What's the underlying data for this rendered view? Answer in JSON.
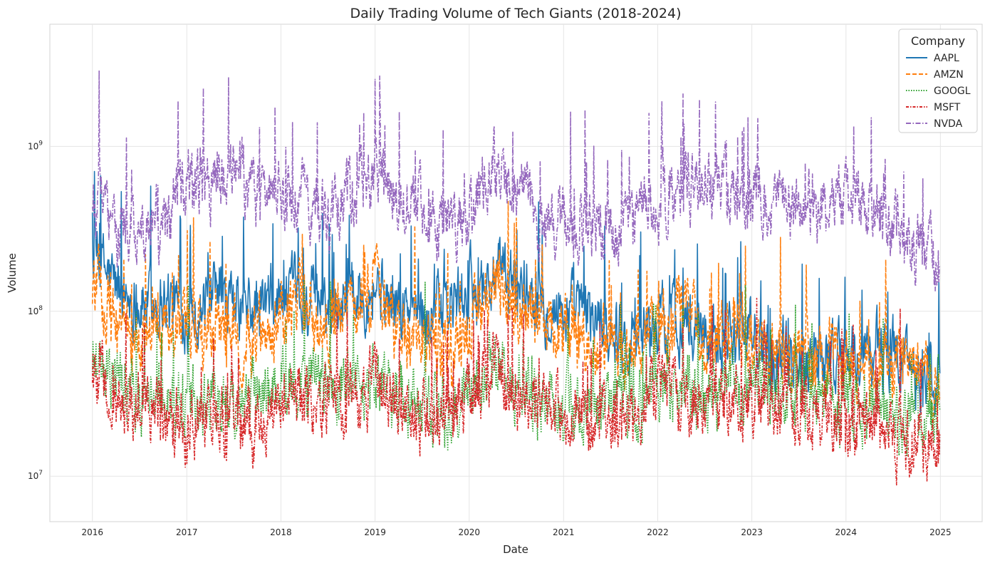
{
  "chart_data": {
    "type": "line",
    "title": "Daily Trading Volume of Tech Giants (2018-2024)",
    "xlabel": "Date",
    "ylabel": "Volume",
    "y_scale": "log",
    "ylim": [
      5300000,
      5500000000
    ],
    "xlim": [
      "2015-07-20",
      "2025-06-12"
    ],
    "x_ticks": [
      "2016",
      "2017",
      "2018",
      "2019",
      "2020",
      "2021",
      "2022",
      "2023",
      "2024",
      "2025"
    ],
    "y_ticks": [
      {
        "value": 10000000,
        "base": "10",
        "exp": "7"
      },
      {
        "value": 100000000,
        "base": "10",
        "exp": "8"
      },
      {
        "value": 1000000000,
        "base": "10",
        "exp": "9"
      }
    ],
    "grid": true,
    "legend": {
      "title": "Company",
      "position": "top-right"
    },
    "series": [
      {
        "name": "AAPL",
        "color": "#1f77b4",
        "dash": "solid",
        "points": [
          [
            "2016-01-01",
            230000000.0
          ],
          [
            "2016-04-01",
            140000000.0
          ],
          [
            "2016-07-01",
            110000000.0
          ],
          [
            "2016-10-01",
            120000000.0
          ],
          [
            "2017-01-01",
            100000000.0
          ],
          [
            "2017-04-01",
            110000000.0
          ],
          [
            "2017-07-01",
            100000000.0
          ],
          [
            "2017-10-01",
            100000000.0
          ],
          [
            "2018-01-01",
            120000000.0
          ],
          [
            "2018-04-01",
            110000000.0
          ],
          [
            "2018-07-01",
            110000000.0
          ],
          [
            "2018-10-01",
            130000000.0
          ],
          [
            "2019-01-01",
            150000000.0
          ],
          [
            "2019-04-01",
            100000000.0
          ],
          [
            "2019-07-01",
            100000000.0
          ],
          [
            "2019-10-01",
            100000000.0
          ],
          [
            "2020-01-01",
            130000000.0
          ],
          [
            "2020-04-01",
            160000000.0
          ],
          [
            "2020-07-01",
            150000000.0
          ],
          [
            "2020-10-01",
            120000000.0
          ],
          [
            "2021-01-01",
            100000000.0
          ],
          [
            "2021-04-01",
            100000000.0
          ],
          [
            "2021-07-01",
            80000000.0
          ],
          [
            "2021-10-01",
            70000000.0
          ],
          [
            "2022-01-01",
            85000000.0
          ],
          [
            "2022-04-01",
            90000000.0
          ],
          [
            "2022-07-01",
            75000000.0
          ],
          [
            "2022-10-01",
            80000000.0
          ],
          [
            "2023-01-01",
            70000000.0
          ],
          [
            "2023-04-01",
            60000000.0
          ],
          [
            "2023-07-01",
            55000000.0
          ],
          [
            "2023-10-01",
            55000000.0
          ],
          [
            "2024-01-01",
            55000000.0
          ],
          [
            "2024-04-01",
            55000000.0
          ],
          [
            "2024-07-01",
            60000000.0
          ],
          [
            "2024-10-01",
            45000000.0
          ],
          [
            "2024-12-31",
            38000000.0
          ]
        ]
      },
      {
        "name": "AMZN",
        "color": "#ff7f0e",
        "dash": "dashed",
        "points": [
          [
            "2016-01-01",
            150000000.0
          ],
          [
            "2016-04-01",
            90000000.0
          ],
          [
            "2016-07-01",
            60000000.0
          ],
          [
            "2016-10-01",
            70000000.0
          ],
          [
            "2017-01-01",
            70000000.0
          ],
          [
            "2017-04-01",
            65000000.0
          ],
          [
            "2017-07-01",
            70000000.0
          ],
          [
            "2017-10-01",
            65000000.0
          ],
          [
            "2018-01-01",
            100000000.0
          ],
          [
            "2018-04-01",
            110000000.0
          ],
          [
            "2018-07-01",
            80000000.0
          ],
          [
            "2018-10-01",
            130000000.0
          ],
          [
            "2019-01-01",
            130000000.0
          ],
          [
            "2019-04-01",
            80000000.0
          ],
          [
            "2019-07-01",
            65000000.0
          ],
          [
            "2019-10-01",
            60000000.0
          ],
          [
            "2020-01-01",
            80000000.0
          ],
          [
            "2020-04-01",
            130000000.0
          ],
          [
            "2020-07-01",
            110000000.0
          ],
          [
            "2020-10-01",
            90000000.0
          ],
          [
            "2021-01-01",
            75000000.0
          ],
          [
            "2021-04-01",
            70000000.0
          ],
          [
            "2021-07-01",
            60000000.0
          ],
          [
            "2021-10-01",
            60000000.0
          ],
          [
            "2022-01-01",
            80000000.0
          ],
          [
            "2022-04-01",
            100000000.0
          ],
          [
            "2022-07-01",
            70000000.0
          ],
          [
            "2022-10-01",
            70000000.0
          ],
          [
            "2023-01-01",
            70000000.0
          ],
          [
            "2023-04-01",
            60000000.0
          ],
          [
            "2023-07-01",
            55000000.0
          ],
          [
            "2023-10-01",
            50000000.0
          ],
          [
            "2024-01-01",
            50000000.0
          ],
          [
            "2024-04-01",
            45000000.0
          ],
          [
            "2024-07-01",
            45000000.0
          ],
          [
            "2024-10-01",
            40000000.0
          ],
          [
            "2024-12-31",
            32000000.0
          ]
        ]
      },
      {
        "name": "GOOGL",
        "color": "#2ca02c",
        "dash": "dotted",
        "points": [
          [
            "2016-01-01",
            55000000.0
          ],
          [
            "2016-04-01",
            35000000.0
          ],
          [
            "2016-07-01",
            30000000.0
          ],
          [
            "2016-10-01",
            30000000.0
          ],
          [
            "2017-01-01",
            30000000.0
          ],
          [
            "2017-04-01",
            30000000.0
          ],
          [
            "2017-07-01",
            30000000.0
          ],
          [
            "2017-10-01",
            30000000.0
          ],
          [
            "2018-01-01",
            35000000.0
          ],
          [
            "2018-04-01",
            40000000.0
          ],
          [
            "2018-07-01",
            35000000.0
          ],
          [
            "2018-10-01",
            40000000.0
          ],
          [
            "2019-01-01",
            35000000.0
          ],
          [
            "2019-04-01",
            30000000.0
          ],
          [
            "2019-07-01",
            28000000.0
          ],
          [
            "2019-10-01",
            25000000.0
          ],
          [
            "2020-01-01",
            30000000.0
          ],
          [
            "2020-04-01",
            45000000.0
          ],
          [
            "2020-07-01",
            35000000.0
          ],
          [
            "2020-10-01",
            30000000.0
          ],
          [
            "2021-01-01",
            28000000.0
          ],
          [
            "2021-04-01",
            26000000.0
          ],
          [
            "2021-07-01",
            25000000.0
          ],
          [
            "2021-10-01",
            25000000.0
          ],
          [
            "2022-01-01",
            35000000.0
          ],
          [
            "2022-04-01",
            35000000.0
          ],
          [
            "2022-07-01",
            30000000.0
          ],
          [
            "2022-10-01",
            35000000.0
          ],
          [
            "2023-01-01",
            35000000.0
          ],
          [
            "2023-04-01",
            33000000.0
          ],
          [
            "2023-07-01",
            30000000.0
          ],
          [
            "2023-10-01",
            30000000.0
          ],
          [
            "2024-01-01",
            30000000.0
          ],
          [
            "2024-04-01",
            28000000.0
          ],
          [
            "2024-07-01",
            25000000.0
          ],
          [
            "2024-10-01",
            24000000.0
          ],
          [
            "2024-12-31",
            22000000.0
          ]
        ]
      },
      {
        "name": "MSFT",
        "color": "#d62728",
        "dash": "dashdot-fine",
        "points": [
          [
            "2016-01-01",
            45000000.0
          ],
          [
            "2016-04-01",
            28000000.0
          ],
          [
            "2016-07-01",
            25000000.0
          ],
          [
            "2016-10-01",
            23000000.0
          ],
          [
            "2017-01-01",
            22000000.0
          ],
          [
            "2017-04-01",
            22000000.0
          ],
          [
            "2017-07-01",
            22000000.0
          ],
          [
            "2017-10-01",
            20000000.0
          ],
          [
            "2018-01-01",
            30000000.0
          ],
          [
            "2018-04-01",
            30000000.0
          ],
          [
            "2018-07-01",
            27000000.0
          ],
          [
            "2018-10-01",
            35000000.0
          ],
          [
            "2019-01-01",
            32000000.0
          ],
          [
            "2019-04-01",
            25000000.0
          ],
          [
            "2019-07-01",
            23000000.0
          ],
          [
            "2019-10-01",
            22000000.0
          ],
          [
            "2020-01-01",
            30000000.0
          ],
          [
            "2020-04-01",
            45000000.0
          ],
          [
            "2020-07-01",
            32000000.0
          ],
          [
            "2020-10-01",
            28000000.0
          ],
          [
            "2021-01-01",
            26000000.0
          ],
          [
            "2021-04-01",
            24000000.0
          ],
          [
            "2021-07-01",
            22000000.0
          ],
          [
            "2021-10-01",
            23000000.0
          ],
          [
            "2022-01-01",
            35000000.0
          ],
          [
            "2022-04-01",
            32000000.0
          ],
          [
            "2022-07-01",
            28000000.0
          ],
          [
            "2022-10-01",
            28000000.0
          ],
          [
            "2023-01-01",
            30000000.0
          ],
          [
            "2023-04-01",
            28000000.0
          ],
          [
            "2023-07-01",
            25000000.0
          ],
          [
            "2023-10-01",
            23000000.0
          ],
          [
            "2024-01-01",
            22000000.0
          ],
          [
            "2024-04-01",
            20000000.0
          ],
          [
            "2024-07-01",
            18000000.0
          ],
          [
            "2024-10-01",
            18000000.0
          ],
          [
            "2024-12-31",
            16000000.0
          ]
        ]
      },
      {
        "name": "NVDA",
        "color": "#9467bd",
        "dash": "dashdot",
        "points": [
          [
            "2016-01-01",
            500000000.0
          ],
          [
            "2016-04-01",
            300000000.0
          ],
          [
            "2016-07-01",
            350000000.0
          ],
          [
            "2016-10-01",
            330000000.0
          ],
          [
            "2017-01-01",
            600000000.0
          ],
          [
            "2017-04-01",
            550000000.0
          ],
          [
            "2017-07-01",
            700000000.0
          ],
          [
            "2017-10-01",
            550000000.0
          ],
          [
            "2018-01-01",
            500000000.0
          ],
          [
            "2018-04-01",
            500000000.0
          ],
          [
            "2018-07-01",
            350000000.0
          ],
          [
            "2018-10-01",
            500000000.0
          ],
          [
            "2019-01-01",
            650000000.0
          ],
          [
            "2019-04-01",
            500000000.0
          ],
          [
            "2019-07-01",
            400000000.0
          ],
          [
            "2019-10-01",
            350000000.0
          ],
          [
            "2020-01-01",
            400000000.0
          ],
          [
            "2020-04-01",
            750000000.0
          ],
          [
            "2020-07-01",
            550000000.0
          ],
          [
            "2020-10-01",
            350000000.0
          ],
          [
            "2021-01-01",
            300000000.0
          ],
          [
            "2021-04-01",
            350000000.0
          ],
          [
            "2021-07-01",
            300000000.0
          ],
          [
            "2021-10-01",
            350000000.0
          ],
          [
            "2022-01-01",
            500000000.0
          ],
          [
            "2022-04-01",
            550000000.0
          ],
          [
            "2022-07-01",
            550000000.0
          ],
          [
            "2022-10-01",
            500000000.0
          ],
          [
            "2023-01-01",
            500000000.0
          ],
          [
            "2023-04-01",
            450000000.0
          ],
          [
            "2023-07-01",
            450000000.0
          ],
          [
            "2023-10-01",
            400000000.0
          ],
          [
            "2024-01-01",
            450000000.0
          ],
          [
            "2024-04-01",
            450000000.0
          ],
          [
            "2024-07-01",
            350000000.0
          ],
          [
            "2024-10-01",
            250000000.0
          ],
          [
            "2024-12-31",
            180000000.0
          ]
        ]
      }
    ]
  }
}
